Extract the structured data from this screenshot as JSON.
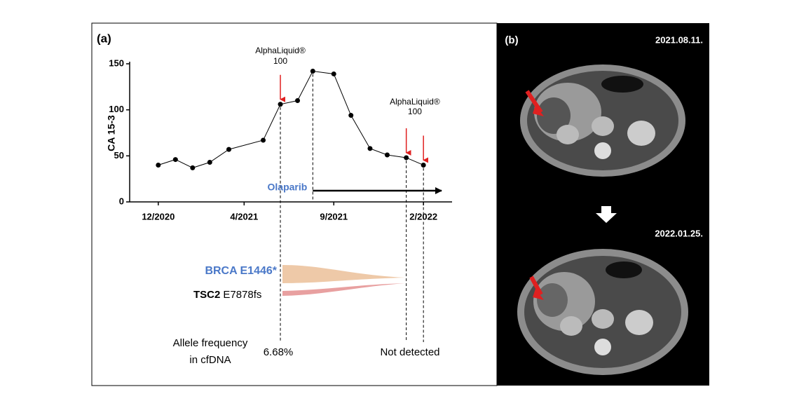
{
  "chart_data": {
    "type": "line",
    "panel_label": "(a)",
    "ylabel": "CA 15-3",
    "x": [
      0,
      0.9,
      1.8,
      2.7,
      3.7,
      5.5,
      6.4,
      7.3,
      8.1,
      9.2,
      10.1,
      11.1,
      12,
      13,
      13.9
    ],
    "series": [
      {
        "color": "#000000",
        "values": [
          40,
          46,
          37,
          43,
          57,
          67,
          106,
          110,
          142,
          139,
          94,
          58,
          51,
          48,
          40
        ]
      }
    ],
    "xlim": [
      -1.5,
      15.4
    ],
    "xticks": [
      {
        "value": 0,
        "label": "12/2020"
      },
      {
        "value": 4.5,
        "label": "4/2021"
      },
      {
        "value": 9.2,
        "label": "9/2021"
      },
      {
        "value": 13.9,
        "label": "2/2022"
      }
    ],
    "ylim": [
      0,
      150
    ],
    "yticks": [
      0,
      50,
      100,
      150
    ],
    "test_labels": [
      {
        "name": "AlphaLiquid®",
        "product": "100"
      },
      {
        "name": "AlphaLiquid®",
        "product": "100"
      }
    ],
    "treatment": "Olaparib",
    "mutations": [
      {
        "gene": "BRCA E1446*"
      },
      {
        "gene": "TSC2",
        "variant": "E7878fs"
      }
    ],
    "allele_frequency": {
      "label_line1": "Allele frequency",
      "label_line2": "in cfDNA",
      "results": [
        "6.68%",
        "Not detected"
      ]
    }
  },
  "panel_b": {
    "label": "(b)",
    "dates": [
      "2021.08.11.",
      "2022.01.25."
    ]
  }
}
